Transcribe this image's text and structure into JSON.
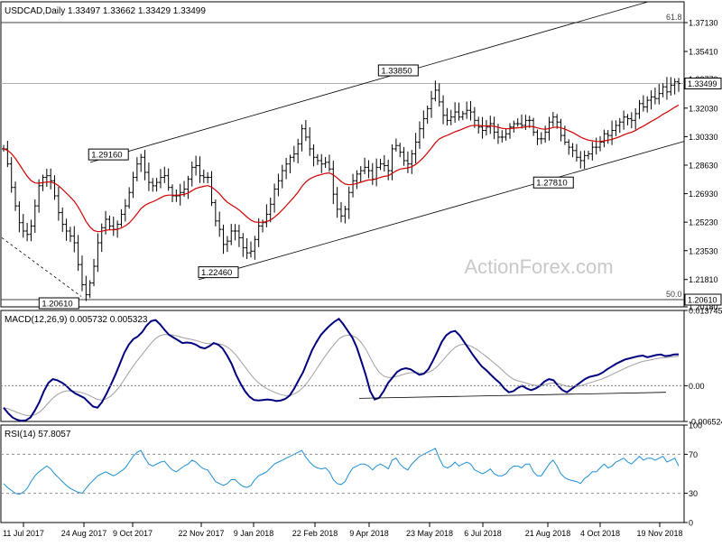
{
  "chart_data": [
    {
      "panel": "price",
      "type": "ohlc",
      "title": "USDCAD,Daily  1.33497  1.33662  1.33429  1.33499",
      "symbol": "USDCAD",
      "timeframe": "Daily",
      "ohlc_last": {
        "open": 1.33497,
        "high": 1.33662,
        "low": 1.33429,
        "close": 1.33499
      },
      "current_price_label": "1.33499",
      "ylim": [
        1.2018,
        1.3837
      ],
      "y_ticks": [
        "1.37130",
        "1.35410",
        "1.33770",
        "1.32030",
        "1.30330",
        "1.28630",
        "1.26930",
        "1.25230",
        "1.23530",
        "1.21810",
        "1.20180"
      ],
      "x_ticks": [
        "11 Jul 2017",
        "24 Aug 2017",
        "9 Oct 2017",
        "22 Nov 2017",
        "9 Jan 2018",
        "22 Feb 2018",
        "9 Apr 2018",
        "23 May 2018",
        "6 Jul 2018",
        "21 Aug 2018",
        "4 Oct 2018",
        "19 Nov 2018"
      ],
      "fib_levels": [
        {
          "label": "61.8",
          "value": 1.3713
        },
        {
          "label": "50.0",
          "value": 1.2061,
          "price_label": "1.20610"
        }
      ],
      "annotations": [
        {
          "text": "1.20610",
          "value": 1.2061
        },
        {
          "text": "1.29160",
          "value": 1.2916
        },
        {
          "text": "1.22460",
          "value": 1.2246
        },
        {
          "text": "1.33850",
          "value": 1.3385
        },
        {
          "text": "1.27810",
          "value": 1.2781
        }
      ],
      "moving_average_color": "#d00000",
      "watermark": "ActionForex.com",
      "close_series": [
        1.296,
        1.287,
        1.273,
        1.262,
        1.252,
        1.247,
        1.245,
        1.25,
        1.262,
        1.274,
        1.279,
        1.28,
        1.277,
        1.268,
        1.258,
        1.251,
        1.247,
        1.244,
        1.24,
        1.227,
        1.215,
        1.209,
        1.216,
        1.226,
        1.24,
        1.249,
        1.254,
        1.25,
        1.248,
        1.251,
        1.257,
        1.262,
        1.27,
        1.279,
        1.287,
        1.291,
        1.282,
        1.276,
        1.274,
        1.276,
        1.279,
        1.28,
        1.273,
        1.268,
        1.268,
        1.27,
        1.272,
        1.278,
        1.285,
        1.286,
        1.28,
        1.279,
        1.279,
        1.264,
        1.253,
        1.248,
        1.239,
        1.241,
        1.247,
        1.247,
        1.243,
        1.237,
        1.234,
        1.235,
        1.242,
        1.25,
        1.252,
        1.257,
        1.263,
        1.272,
        1.277,
        1.283,
        1.287,
        1.291,
        1.293,
        1.299,
        1.308,
        1.303,
        1.296,
        1.291,
        1.289,
        1.287,
        1.288,
        1.284,
        1.269,
        1.26,
        1.256,
        1.26,
        1.27,
        1.277,
        1.281,
        1.283,
        1.285,
        1.283,
        1.278,
        1.285,
        1.287,
        1.286,
        1.283,
        1.296,
        1.298,
        1.294,
        1.289,
        1.287,
        1.293,
        1.3,
        1.308,
        1.314,
        1.32,
        1.326,
        1.331,
        1.324,
        1.316,
        1.313,
        1.315,
        1.318,
        1.315,
        1.317,
        1.319,
        1.318,
        1.313,
        1.309,
        1.307,
        1.309,
        1.311,
        1.306,
        1.303,
        1.303,
        1.305,
        1.309,
        1.311,
        1.311,
        1.31,
        1.313,
        1.313,
        1.306,
        1.302,
        1.302,
        1.306,
        1.312,
        1.315,
        1.312,
        1.304,
        1.3,
        1.297,
        1.295,
        1.291,
        1.289,
        1.292,
        1.293,
        1.297,
        1.297,
        1.3,
        1.305,
        1.304,
        1.307,
        1.31,
        1.312,
        1.315,
        1.314,
        1.313,
        1.317,
        1.323,
        1.321,
        1.325,
        1.327,
        1.326,
        1.329,
        1.333,
        1.33,
        1.334,
        1.336,
        1.335
      ]
    },
    {
      "panel": "macd",
      "type": "line",
      "title": "MACD(12,26,9)  0.005732  0.005323",
      "series": [
        {
          "name": "MACD",
          "last": 0.005732,
          "color": "#00007f"
        },
        {
          "name": "Signal",
          "last": 0.005323,
          "color": "#a0a0a0"
        }
      ],
      "ylim": [
        -0.00652,
        0.01374
      ],
      "y_ticks": [
        "0.013745",
        "0.00",
        "-0.006524"
      ],
      "annotation_trendline": "support line across MACD troughs",
      "macd_series": [
        -0.004,
        -0.005,
        -0.0058,
        -0.0062,
        -0.0064,
        -0.0063,
        -0.0058,
        -0.0045,
        -0.003,
        -0.001,
        0.0005,
        0.0012,
        0.001,
        0.0006,
        0.0,
        -0.0008,
        -0.0014,
        -0.0018,
        -0.0022,
        -0.003,
        -0.0038,
        -0.004,
        -0.003,
        -0.0015,
        0.0002,
        0.002,
        0.004,
        0.006,
        0.0075,
        0.0085,
        0.009,
        0.0098,
        0.011,
        0.0118,
        0.012,
        0.0112,
        0.0102,
        0.0093,
        0.0088,
        0.0083,
        0.0078,
        0.0079,
        0.0078,
        0.0075,
        0.007,
        0.0068,
        0.0072,
        0.0078,
        0.0075,
        0.0068,
        0.0055,
        0.004,
        0.002,
        0.0004,
        -0.001,
        -0.002,
        -0.0026,
        -0.0027,
        -0.0026,
        -0.0025,
        -0.0026,
        -0.0028,
        -0.0027,
        -0.0024,
        -0.0018,
        -0.0005,
        0.001,
        0.0025,
        0.0045,
        0.0065,
        0.008,
        0.0093,
        0.0102,
        0.011,
        0.0117,
        0.0122,
        0.0112,
        0.01,
        0.0088,
        0.007,
        0.0045,
        0.002,
        -0.001,
        -0.0025,
        -0.0022,
        -0.001,
        0.0005,
        0.0015,
        0.0025,
        0.003,
        0.0032,
        0.003,
        0.0025,
        0.002,
        0.0022,
        0.003,
        0.0045,
        0.0062,
        0.008,
        0.0092,
        0.0098,
        0.01,
        0.0092,
        0.008,
        0.0068,
        0.0056,
        0.0045,
        0.0035,
        0.0028,
        0.002,
        0.0012,
        0.0005,
        -0.0005,
        -0.0012,
        -0.001,
        -0.0004,
        0.0,
        -0.0005,
        -0.0008,
        -0.0005,
        0.0,
        0.0008,
        0.0012,
        0.001,
        0.0,
        -0.0008,
        -0.0012,
        -0.0006,
        0.0,
        0.0006,
        0.0012,
        0.0016,
        0.0018,
        0.002,
        0.0024,
        0.003,
        0.0035,
        0.004,
        0.0044,
        0.0048,
        0.005,
        0.0052,
        0.0054,
        0.0055,
        0.0052,
        0.0054,
        0.0056,
        0.0057,
        0.0054,
        0.0055,
        0.0057,
        0.00573
      ]
    },
    {
      "panel": "rsi",
      "type": "line",
      "title": "RSI(14)  57.8057",
      "series": [
        {
          "name": "RSI(14)",
          "last": 57.8057,
          "color": "#1e8fd6"
        }
      ],
      "ylim": [
        0,
        100
      ],
      "y_ticks": [
        "100",
        "70",
        "30",
        "0"
      ],
      "levels": [
        70,
        30
      ],
      "rsi_series": [
        40,
        36,
        33,
        30,
        29,
        31,
        35,
        42,
        48,
        52,
        55,
        58,
        55,
        50,
        46,
        42,
        38,
        35,
        33,
        31,
        30,
        35,
        40,
        44,
        48,
        50,
        52,
        50,
        48,
        50,
        53,
        56,
        62,
        68,
        72,
        74,
        66,
        60,
        58,
        60,
        62,
        63,
        58,
        54,
        52,
        55,
        58,
        60,
        64,
        62,
        58,
        55,
        54,
        48,
        42,
        40,
        38,
        40,
        44,
        44,
        40,
        37,
        36,
        38,
        44,
        48,
        50,
        52,
        56,
        60,
        62,
        64,
        66,
        68,
        70,
        72,
        74,
        67,
        62,
        58,
        56,
        55,
        56,
        52,
        44,
        40,
        39,
        42,
        50,
        56,
        58,
        60,
        60,
        58,
        54,
        58,
        60,
        58,
        55,
        64,
        66,
        60,
        56,
        54,
        60,
        64,
        68,
        70,
        72,
        74,
        76,
        66,
        58,
        56,
        58,
        62,
        58,
        60,
        62,
        60,
        54,
        52,
        50,
        52,
        55,
        50,
        48,
        48,
        50,
        55,
        58,
        58,
        56,
        60,
        60,
        52,
        48,
        48,
        54,
        60,
        64,
        58,
        50,
        46,
        44,
        43,
        42,
        40,
        45,
        48,
        52,
        52,
        56,
        60,
        56,
        58,
        62,
        64,
        66,
        62,
        60,
        64,
        68,
        64,
        66,
        66,
        64,
        66,
        68,
        62,
        64,
        66,
        58
      ]
    }
  ]
}
